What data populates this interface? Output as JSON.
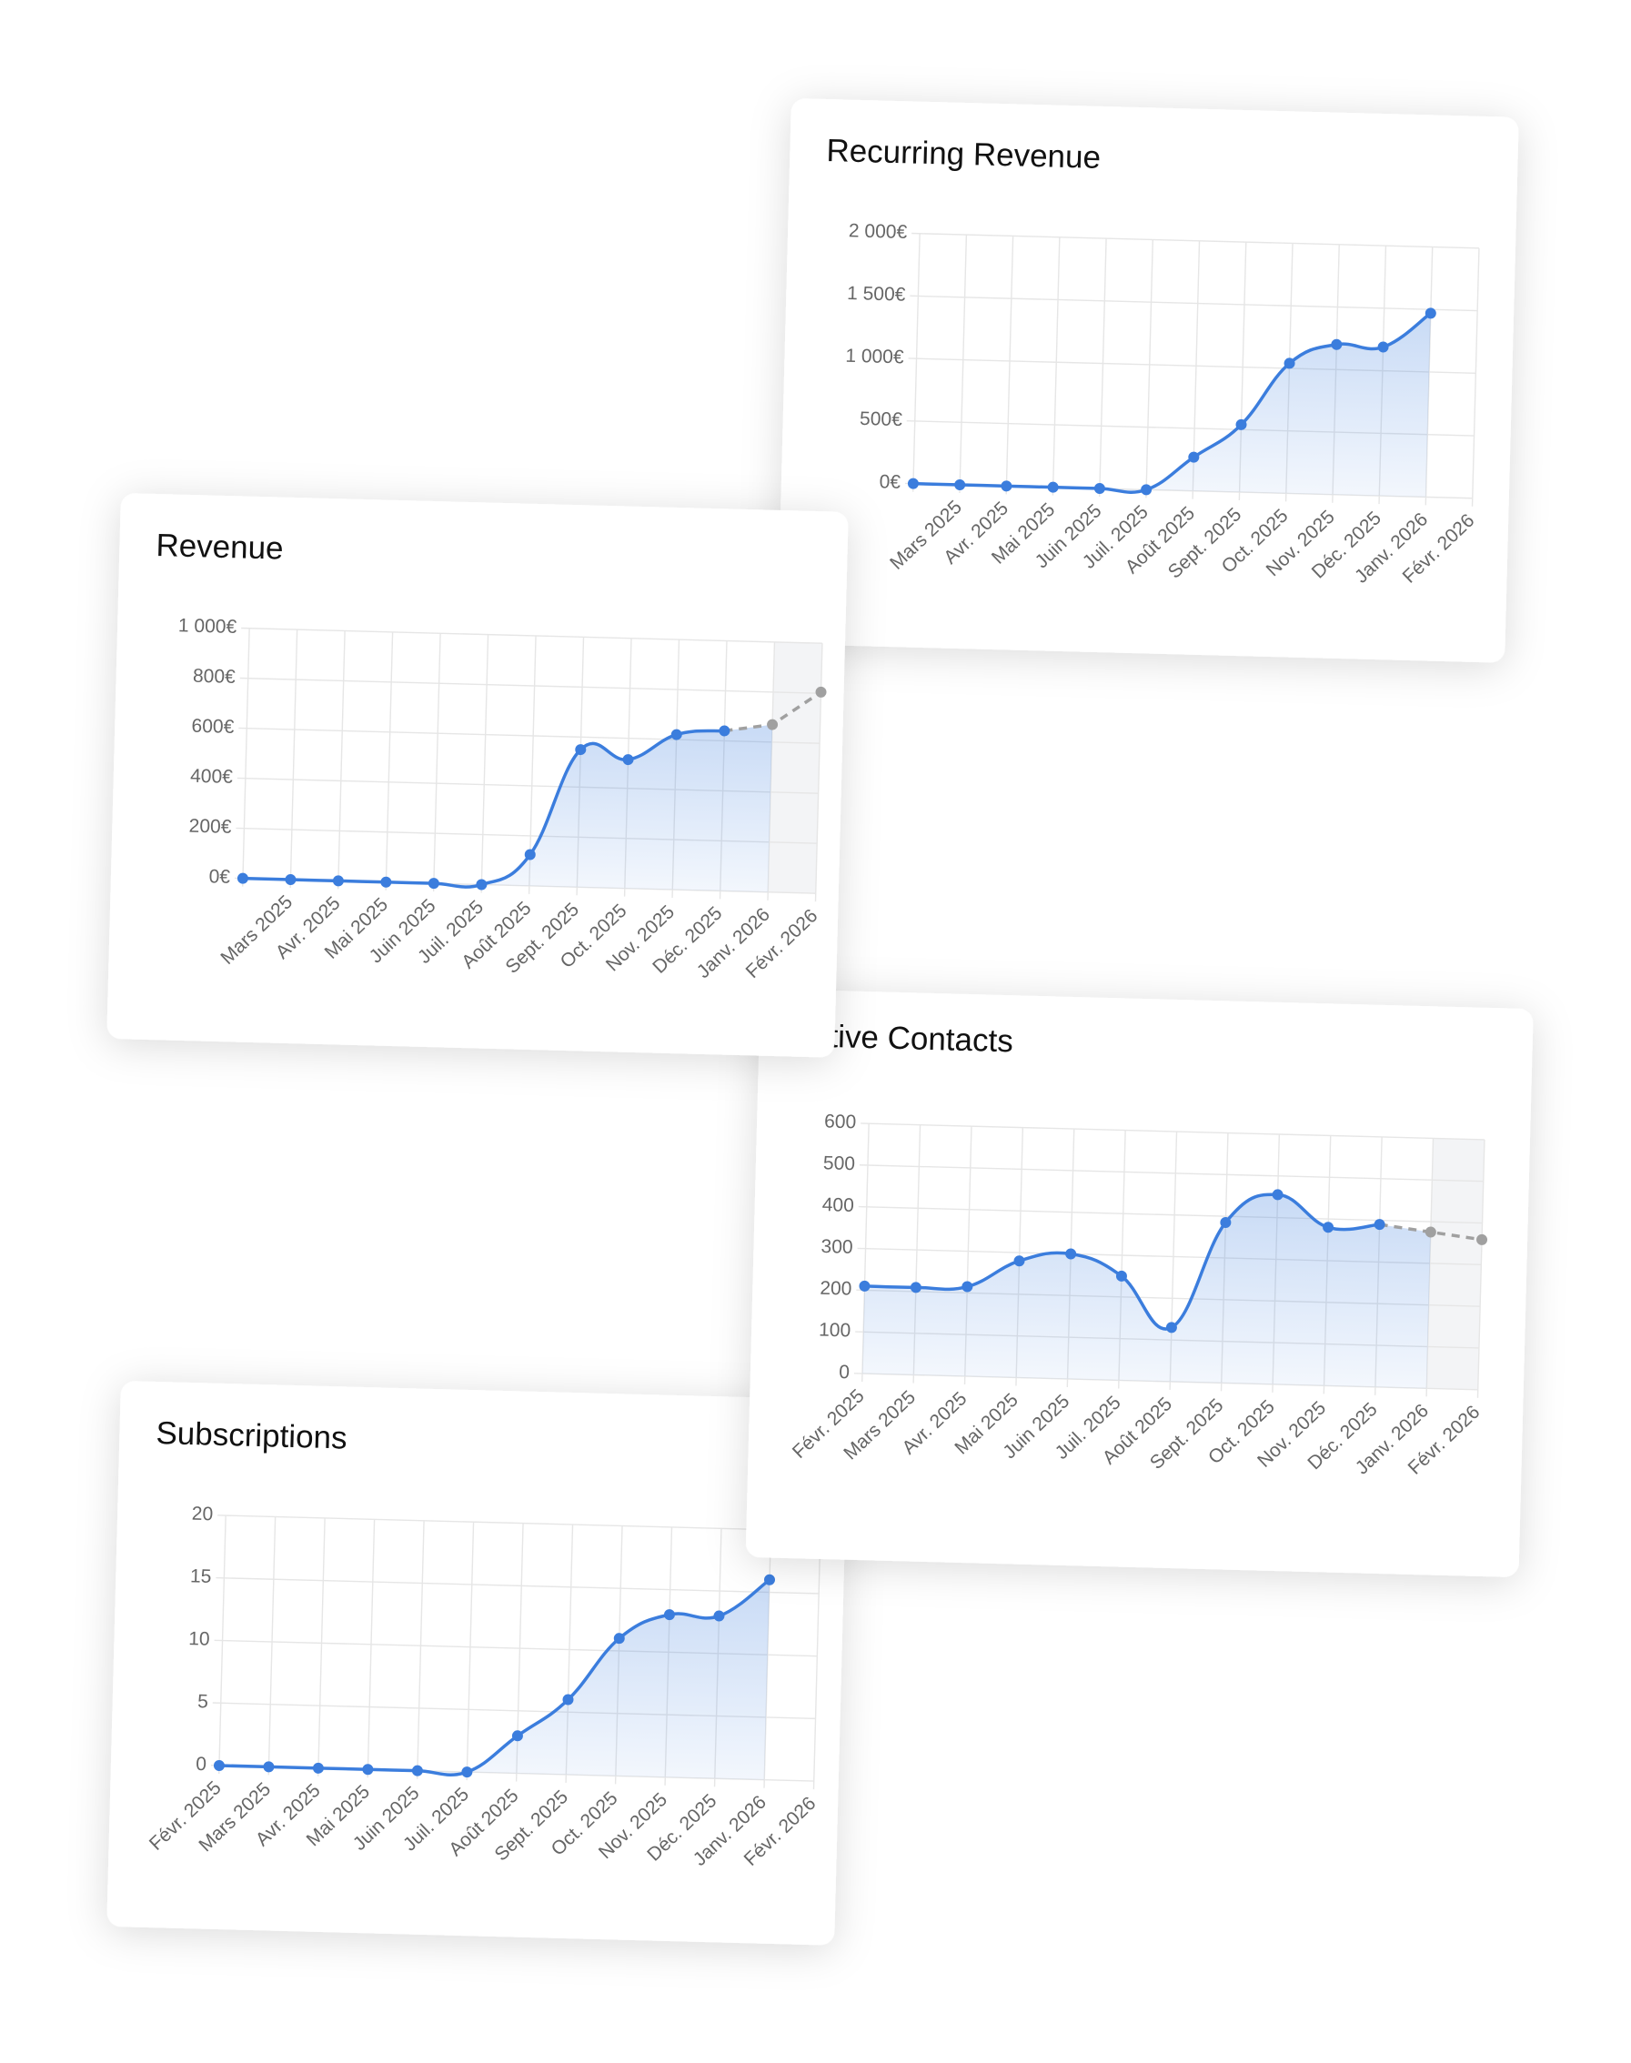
{
  "chart_data": [
    {
      "type": "line",
      "title": "Recurring Revenue",
      "categories": [
        null,
        "Mars 2025",
        "Avr. 2025",
        "Mai 2025",
        "Juin 2025",
        "Juil. 2025",
        "Août 2025",
        "Sept. 2025",
        "Oct. 2025",
        "Nov. 2025",
        "Déc. 2025",
        "Janv. 2026",
        "Févr. 2026"
      ],
      "series": [
        {
          "color": "#3b7ddd",
          "values": [
            0,
            0,
            0,
            0,
            0,
            0,
            270,
            540,
            1040,
            1200,
            1190,
            1470,
            null
          ]
        }
      ],
      "ylim": [
        0,
        2000
      ],
      "yticks": [
        {
          "value": 0,
          "label": "0€"
        },
        {
          "value": 500,
          "label": "500€"
        },
        {
          "value": 1000,
          "label": "1 000€"
        },
        {
          "value": 1500,
          "label": "1 500€"
        },
        {
          "value": 2000,
          "label": "2 000€"
        }
      ],
      "grid": true
    },
    {
      "type": "line",
      "title": "Revenue",
      "categories": [
        null,
        "Mars 2025",
        "Avr. 2025",
        "Mai 2025",
        "Juin 2025",
        "Juil. 2025",
        "Août 2025",
        "Sept. 2025",
        "Oct. 2025",
        "Nov. 2025",
        "Déc. 2025",
        "Janv. 2026",
        "Févr. 2026"
      ],
      "series": [
        {
          "color": "#3b7ddd",
          "values": [
            0,
            0,
            0,
            0,
            0,
            0,
            125,
            550,
            515,
            620,
            640,
            670,
            805
          ]
        }
      ],
      "forecast_points": 2,
      "forecast_color": "#a0a0a0",
      "ylim": [
        0,
        1000
      ],
      "yticks": [
        {
          "value": 0,
          "label": "0€"
        },
        {
          "value": 200,
          "label": "200€"
        },
        {
          "value": 400,
          "label": "400€"
        },
        {
          "value": 600,
          "label": "600€"
        },
        {
          "value": 800,
          "label": "800€"
        },
        {
          "value": 1000,
          "label": "1 000€"
        }
      ],
      "grid": true
    },
    {
      "type": "line",
      "title": "Active Contacts",
      "categories": [
        "Févr. 2025",
        "Mars 2025",
        "Avr. 2025",
        "Mai 2025",
        "Juin 2025",
        "Juil. 2025",
        "Août 2025",
        "Sept. 2025",
        "Oct. 2025",
        "Nov. 2025",
        "Déc. 2025",
        "Janv. 2026",
        "Févr. 2026"
      ],
      "series": [
        {
          "color": "#3b7ddd",
          "values": [
            210,
            210,
            215,
            280,
            300,
            250,
            130,
            385,
            455,
            380,
            390,
            375,
            360
          ]
        }
      ],
      "forecast_points": 2,
      "forecast_color": "#a0a0a0",
      "ylim": [
        0,
        600
      ],
      "yticks": [
        0,
        100,
        200,
        300,
        400,
        500,
        600
      ],
      "grid": true
    },
    {
      "type": "line",
      "title": "Subscriptions",
      "categories": [
        "Févr. 2025",
        "Mars 2025",
        "Avr. 2025",
        "Mai 2025",
        "Juin 2025",
        "Juil. 2025",
        "Août 2025",
        "Sept. 2025",
        "Oct. 2025",
        "Nov. 2025",
        "Déc. 2025",
        "Janv. 2026",
        "Févr. 2026"
      ],
      "series": [
        {
          "color": "#3b7ddd",
          "values": [
            0,
            0,
            0,
            0,
            0,
            0,
            3,
            6,
            11,
            13,
            13,
            16,
            null
          ]
        }
      ],
      "ylim": [
        0,
        20
      ],
      "yticks": [
        0,
        5,
        10,
        15,
        20
      ],
      "grid": true
    }
  ]
}
